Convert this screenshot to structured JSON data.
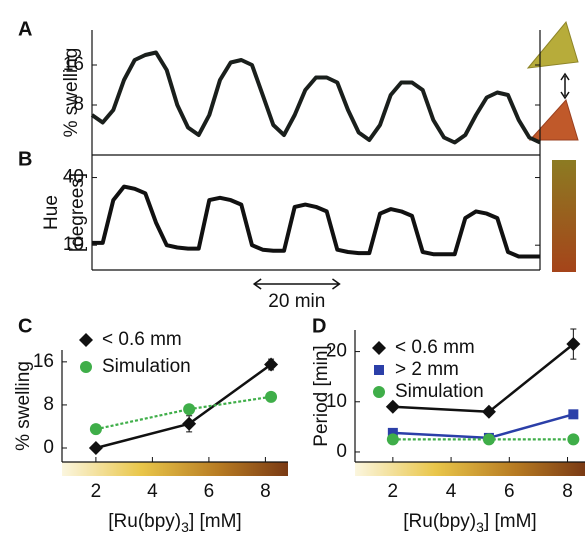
{
  "chart_data": [
    {
      "type": "line",
      "panel": "A",
      "ylabel": [
        "% swelling"
      ],
      "xlim": [
        0,
        105
      ],
      "ylim": [
        -2,
        23
      ],
      "yticks": [
        8,
        16
      ],
      "x": [
        0,
        2.5,
        5,
        7.5,
        10,
        12.5,
        15,
        17.5,
        20,
        22.5,
        25,
        27.5,
        30,
        32.5,
        35,
        37.5,
        40,
        42.5,
        45,
        47.5,
        50,
        52.5,
        55,
        57.5,
        60,
        62.5,
        65,
        67.5,
        70,
        72.5,
        75,
        77.5,
        80,
        82.5,
        85,
        87.5,
        90,
        92.5,
        95,
        97.5,
        100,
        102.5,
        105
      ],
      "series": [
        {
          "color": "#1a1f1c",
          "values": [
            6,
            4.5,
            7,
            13,
            17,
            18,
            18.5,
            15,
            8,
            3.5,
            2,
            6,
            13,
            16.5,
            17,
            16,
            10,
            4,
            2,
            6,
            11,
            13.5,
            13.5,
            12.5,
            7,
            2.5,
            1,
            4,
            10,
            12.5,
            12.5,
            11,
            5,
            1.5,
            0.5,
            2,
            6,
            9.5,
            10.5,
            10,
            5,
            1.5,
            0.5
          ]
        }
      ]
    },
    {
      "type": "line",
      "panel": "B",
      "ylabel": [
        "Hue",
        "[degrees]"
      ],
      "xlim": [
        0,
        105
      ],
      "ylim": [
        -1,
        50
      ],
      "yticks": [
        10,
        40
      ],
      "x": [
        0,
        2.5,
        5,
        7.5,
        10,
        12.5,
        15,
        17.5,
        20,
        22.5,
        25,
        27.5,
        30,
        32.5,
        35,
        37.5,
        40,
        42.5,
        45,
        47.5,
        50,
        52.5,
        55,
        57.5,
        60,
        62.5,
        65,
        67.5,
        70,
        72.5,
        75,
        77.5,
        80,
        82.5,
        85,
        87.5,
        90,
        92.5,
        95,
        97.5,
        100,
        102.5,
        105
      ],
      "series": [
        {
          "color": "#111111",
          "values": [
            11,
            11,
            30,
            36,
            35,
            33,
            20,
            10,
            9,
            8.5,
            8.5,
            30,
            31,
            30,
            28,
            10,
            8,
            7.5,
            7.5,
            27,
            28,
            27,
            25,
            8,
            7,
            6.5,
            6.5,
            24,
            26,
            25,
            23,
            7,
            6,
            6,
            6,
            22,
            25,
            24,
            22,
            7,
            5,
            5,
            5
          ]
        }
      ],
      "scale_bar": {
        "value": 20,
        "label": "20 min"
      }
    },
    {
      "type": "line",
      "panel": "C",
      "ylabel": [
        "% swelling"
      ],
      "xlabel": [
        "[Ru(bpy)",
        "3",
        "] [mM]"
      ],
      "xlim": [
        0.8,
        8.8
      ],
      "ylim": [
        -2.6,
        18.2
      ],
      "xticks": [
        2,
        4,
        6,
        8
      ],
      "yticks": [
        0,
        8,
        16
      ],
      "legend": "upper left",
      "series": [
        {
          "name": "< 0.6 mm",
          "color": "#111111",
          "marker": "diamond",
          "x": [
            2,
            5.3,
            8.2
          ],
          "values": [
            0,
            4.5,
            15.5
          ],
          "errors": [
            0.4,
            1.5,
            1
          ]
        },
        {
          "name": "Simulation",
          "color": "#3fae49",
          "marker": "circle",
          "dashed": true,
          "x": [
            2,
            5.3,
            8.2
          ],
          "values": [
            3.5,
            7.2,
            9.5
          ]
        }
      ]
    },
    {
      "type": "line",
      "panel": "D",
      "ylabel": [
        "Period [min]"
      ],
      "xlabel": [
        "[Ru(bpy)",
        "3",
        "] [mM]"
      ],
      "xlim": [
        0.7,
        8.6
      ],
      "ylim": [
        -2,
        24.3
      ],
      "xticks": [
        2,
        4,
        6,
        8
      ],
      "yticks": [
        0,
        10,
        20
      ],
      "legend": "upper left",
      "series": [
        {
          "name": "< 0.6 mm",
          "color": "#111111",
          "marker": "diamond",
          "x": [
            2,
            5.3,
            8.2
          ],
          "values": [
            9,
            8,
            21.5
          ],
          "errors": [
            0.5,
            0.5,
            3
          ]
        },
        {
          "name": "> 2 mm",
          "color": "#2b3fa8",
          "marker": "square",
          "x": [
            2,
            5.3,
            8.2
          ],
          "values": [
            3.8,
            2.8,
            7.5
          ]
        },
        {
          "name": "Simulation",
          "color": "#3fae49",
          "marker": "circle",
          "dashed": true,
          "x": [
            2,
            5.3,
            8.2
          ],
          "values": [
            2.5,
            2.5,
            2.5
          ]
        }
      ]
    }
  ]
}
